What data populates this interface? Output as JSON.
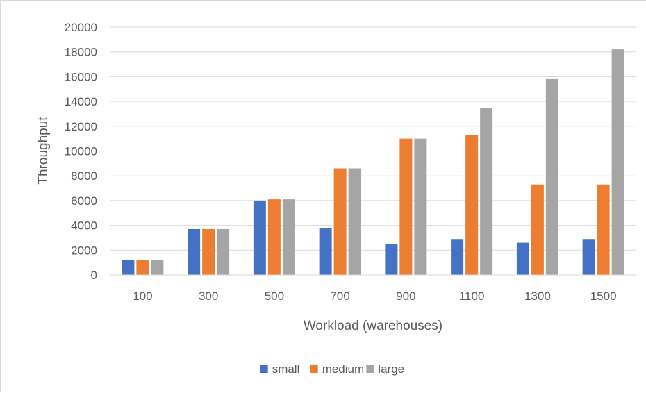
{
  "chart_data": {
    "type": "bar",
    "title": "",
    "xlabel": "Workload (warehouses)",
    "ylabel": "Throughput",
    "categories": [
      "100",
      "300",
      "500",
      "700",
      "900",
      "1100",
      "1300",
      "1500"
    ],
    "series": [
      {
        "name": "small",
        "color": "#4472c4",
        "values": [
          1200,
          3700,
          6000,
          3800,
          2500,
          2900,
          2600,
          2900
        ]
      },
      {
        "name": "medium",
        "color": "#ed7d31",
        "values": [
          1200,
          3700,
          6100,
          8600,
          11000,
          11300,
          7300,
          7300
        ]
      },
      {
        "name": "large",
        "color": "#a5a5a5",
        "values": [
          1200,
          3700,
          6100,
          8600,
          11000,
          13500,
          15800,
          18200
        ]
      }
    ],
    "ylim": [
      0,
      20000
    ],
    "yticks": [
      0,
      2000,
      4000,
      6000,
      8000,
      10000,
      12000,
      14000,
      16000,
      18000,
      20000
    ],
    "grid": true,
    "legend_position": "bottom"
  }
}
